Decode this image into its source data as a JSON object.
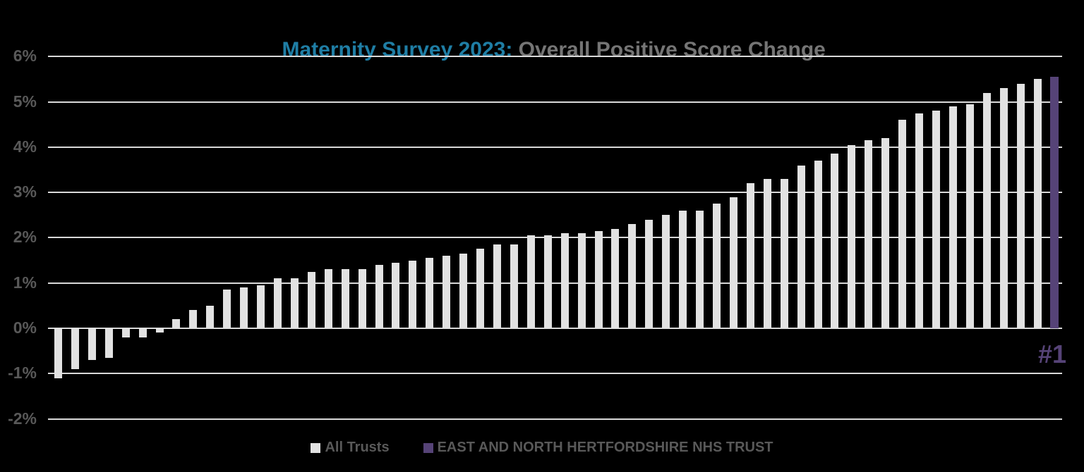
{
  "title": {
    "highlight": "Maternity Survey 2023:",
    "rest": " Overall Positive Score Change"
  },
  "rank_label": "#1",
  "colors": {
    "background": "#000000",
    "all_trusts_bar": "#E2E2E2",
    "highlight_bar": "#564377",
    "gridline": "#D9D9D9",
    "axis_text": "#595959",
    "title_highlight": "#1F7EA5",
    "title_rest": "#757575",
    "legend_text": "#595959",
    "rank_text": "#564377"
  },
  "legend": {
    "items": [
      {
        "label": "All Trusts",
        "color": "#E2E2E2"
      },
      {
        "label": "EAST AND NORTH HERTFORDSHIRE NHS TRUST",
        "color": "#564377"
      }
    ]
  },
  "chart_data": {
    "type": "bar",
    "title": "Maternity Survey 2023: Overall Positive Score Change",
    "xlabel": "",
    "ylabel": "",
    "ylim": [
      -2,
      6
    ],
    "ytick_values": [
      6,
      5,
      4,
      3,
      2,
      1,
      0,
      -1,
      -2
    ],
    "ytick_labels": [
      "6%",
      "5%",
      "4%",
      "3%",
      "2%",
      "1%",
      "0%",
      "-1%",
      "-2%"
    ],
    "grid": true,
    "sorted": "ascending",
    "legend_position": "bottom",
    "unit": "percent",
    "series": [
      {
        "name": "All Trusts",
        "color": "#E2E2E2",
        "values": [
          -1.1,
          -0.9,
          -0.7,
          -0.65,
          -0.2,
          -0.2,
          -0.1,
          0.2,
          0.4,
          0.5,
          0.85,
          0.9,
          0.95,
          1.1,
          1.1,
          1.25,
          1.3,
          1.3,
          1.3,
          1.4,
          1.45,
          1.5,
          1.55,
          1.6,
          1.65,
          1.75,
          1.85,
          1.85,
          2.05,
          2.05,
          2.1,
          2.1,
          2.15,
          2.2,
          2.3,
          2.4,
          2.5,
          2.6,
          2.6,
          2.75,
          2.9,
          3.2,
          3.3,
          3.3,
          3.6,
          3.7,
          3.85,
          4.05,
          4.15,
          4.2,
          4.6,
          4.75,
          4.8,
          4.9,
          4.95,
          5.2,
          5.3,
          5.4,
          5.5
        ]
      },
      {
        "name": "EAST AND NORTH HERTFORDSHIRE NHS TRUST",
        "color": "#564377",
        "values": [
          5.55
        ],
        "annotation": "#1"
      }
    ]
  }
}
